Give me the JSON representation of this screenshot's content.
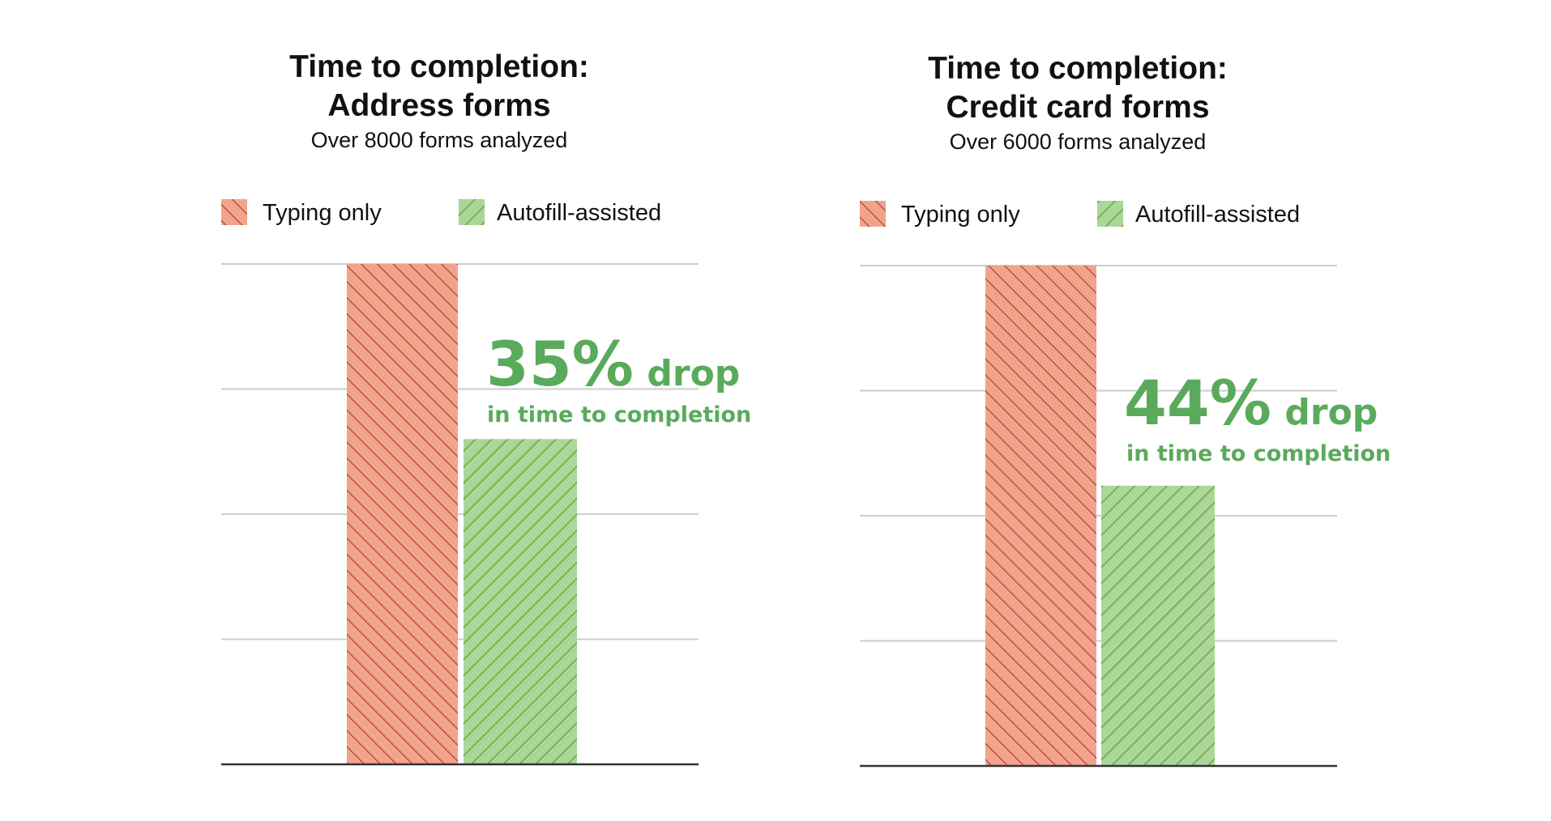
{
  "colors": {
    "typing_fill": "#f0a48e",
    "typing_stripe": "#c0391f",
    "autofill_fill": "#abd69a",
    "autofill_stripe": "#5f9e22",
    "annotation": "#5aaa5c",
    "grid": "#cccccc",
    "axis": "#333333"
  },
  "chart_data": [
    {
      "type": "bar",
      "title_line1": "Time to completion:",
      "title_line2": "Address forms",
      "subtitle": "Over 8000 forms analyzed",
      "legend_position": "top",
      "grid": true,
      "ylim": [
        0,
        100
      ],
      "series": [
        {
          "name": "Typing only",
          "value": 100,
          "pattern": "typing"
        },
        {
          "name": "Autofill-assisted",
          "value": 65,
          "pattern": "autofill"
        }
      ],
      "annotation": {
        "percent": "35%",
        "word": "drop",
        "detail": "in time to completion"
      }
    },
    {
      "type": "bar",
      "title_line1": "Time to completion:",
      "title_line2": "Credit card forms",
      "subtitle": "Over 6000 forms analyzed",
      "legend_position": "top",
      "grid": true,
      "ylim": [
        0,
        100
      ],
      "series": [
        {
          "name": "Typing only",
          "value": 100,
          "pattern": "typing"
        },
        {
          "name": "Autofill-assisted",
          "value": 56,
          "pattern": "autofill"
        }
      ],
      "annotation": {
        "percent": "44%",
        "word": "drop",
        "detail": "in time to completion"
      }
    }
  ]
}
